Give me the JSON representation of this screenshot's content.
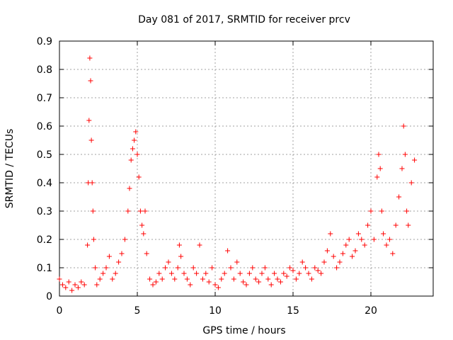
{
  "chart_data": {
    "type": "scatter",
    "title": "Day 081 of 2017, SRMTID for receiver prcv",
    "xlabel": "GPS time / hours",
    "ylabel": "SRMTID / TECUs",
    "xlim": [
      0,
      24
    ],
    "ylim": [
      0,
      0.9
    ],
    "xticks": [
      0,
      5,
      10,
      15,
      20
    ],
    "xtick_labels": [
      "0",
      "5",
      "10",
      "15",
      "20"
    ],
    "yticks": [
      0,
      0.1,
      0.2,
      0.3,
      0.4,
      0.5,
      0.6,
      0.7,
      0.8,
      0.9
    ],
    "ytick_labels": [
      "0",
      "0.1",
      "0.2",
      "0.3",
      "0.4",
      "0.5",
      "0.6",
      "0.7",
      "0.8",
      "0.9"
    ],
    "grid": true,
    "marker": "+",
    "color": "#ff0000",
    "series": [
      {
        "name": "SRMTID",
        "x": [
          0.0,
          0.2,
          0.4,
          0.6,
          0.8,
          1.0,
          1.2,
          1.4,
          1.6,
          1.8,
          1.85,
          1.9,
          1.95,
          2.0,
          2.05,
          2.1,
          2.15,
          2.2,
          2.3,
          2.4,
          2.6,
          2.8,
          3.0,
          3.2,
          3.4,
          3.6,
          3.8,
          4.0,
          4.2,
          4.4,
          4.5,
          4.6,
          4.7,
          4.8,
          4.9,
          5.0,
          5.1,
          5.2,
          5.3,
          5.4,
          5.5,
          5.6,
          5.8,
          6.0,
          6.2,
          6.4,
          6.6,
          6.8,
          7.0,
          7.2,
          7.4,
          7.6,
          7.7,
          7.8,
          8.0,
          8.2,
          8.4,
          8.6,
          8.8,
          9.0,
          9.2,
          9.4,
          9.6,
          9.8,
          10.0,
          10.2,
          10.4,
          10.6,
          10.8,
          11.0,
          11.2,
          11.4,
          11.6,
          11.8,
          12.0,
          12.2,
          12.4,
          12.6,
          12.8,
          13.0,
          13.2,
          13.4,
          13.6,
          13.8,
          14.0,
          14.2,
          14.4,
          14.6,
          14.8,
          15.0,
          15.2,
          15.4,
          15.6,
          15.8,
          16.0,
          16.2,
          16.4,
          16.6,
          16.8,
          17.0,
          17.2,
          17.4,
          17.6,
          17.8,
          18.0,
          18.2,
          18.4,
          18.6,
          18.8,
          19.0,
          19.2,
          19.4,
          19.6,
          19.8,
          20.0,
          20.2,
          20.4,
          20.5,
          20.6,
          20.7,
          20.8,
          21.0,
          21.2,
          21.4,
          21.6,
          21.8,
          22.0,
          22.1,
          22.2,
          22.3,
          22.4,
          22.6,
          22.8
        ],
        "y": [
          0.06,
          0.04,
          0.03,
          0.05,
          0.02,
          0.04,
          0.03,
          0.05,
          0.04,
          0.18,
          0.4,
          0.62,
          0.84,
          0.76,
          0.55,
          0.4,
          0.3,
          0.2,
          0.1,
          0.04,
          0.06,
          0.08,
          0.1,
          0.14,
          0.06,
          0.08,
          0.12,
          0.15,
          0.2,
          0.3,
          0.38,
          0.48,
          0.52,
          0.55,
          0.58,
          0.5,
          0.42,
          0.3,
          0.25,
          0.22,
          0.3,
          0.15,
          0.06,
          0.04,
          0.05,
          0.08,
          0.06,
          0.1,
          0.12,
          0.08,
          0.06,
          0.1,
          0.18,
          0.14,
          0.08,
          0.06,
          0.04,
          0.1,
          0.08,
          0.18,
          0.06,
          0.08,
          0.05,
          0.1,
          0.04,
          0.03,
          0.06,
          0.08,
          0.16,
          0.1,
          0.06,
          0.12,
          0.08,
          0.05,
          0.04,
          0.08,
          0.1,
          0.06,
          0.05,
          0.08,
          0.1,
          0.06,
          0.04,
          0.08,
          0.06,
          0.05,
          0.08,
          0.07,
          0.1,
          0.09,
          0.06,
          0.08,
          0.12,
          0.1,
          0.08,
          0.06,
          0.1,
          0.09,
          0.08,
          0.12,
          0.16,
          0.22,
          0.14,
          0.1,
          0.12,
          0.15,
          0.18,
          0.2,
          0.14,
          0.16,
          0.22,
          0.2,
          0.18,
          0.25,
          0.3,
          0.2,
          0.42,
          0.5,
          0.45,
          0.3,
          0.22,
          0.18,
          0.2,
          0.15,
          0.25,
          0.35,
          0.45,
          0.6,
          0.5,
          0.3,
          0.25,
          0.4,
          0.48
        ]
      }
    ]
  }
}
